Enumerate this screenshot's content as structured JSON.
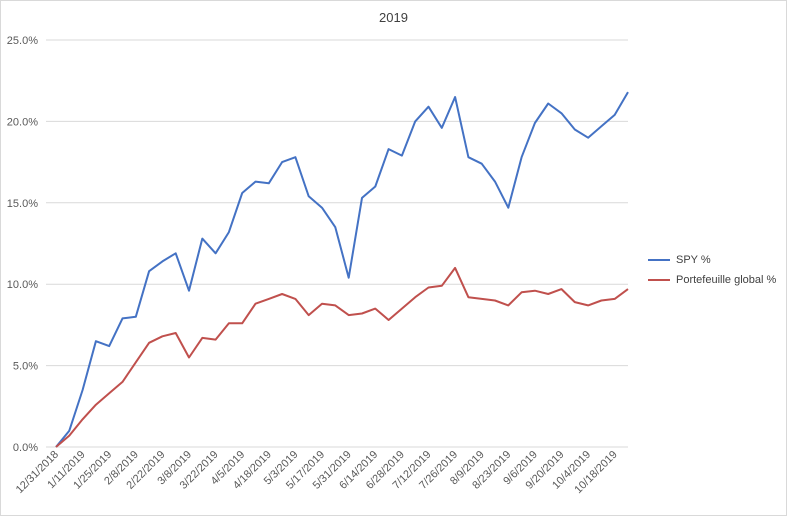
{
  "chart_data": {
    "type": "line",
    "title": "2019",
    "xlabel": "",
    "ylabel": "",
    "ylim": [
      0,
      25
    ],
    "y_ticks": [
      "0.0%",
      "5.0%",
      "10.0%",
      "15.0%",
      "20.0%",
      "25.0%"
    ],
    "grid": true,
    "legend_position": "right",
    "x": [
      "12/31/2018",
      "1/4/2019",
      "1/11/2019",
      "1/18/2019",
      "1/25/2019",
      "2/1/2019",
      "2/8/2019",
      "2/15/2019",
      "2/22/2019",
      "3/1/2019",
      "3/8/2019",
      "3/15/2019",
      "3/22/2019",
      "3/29/2019",
      "4/5/2019",
      "4/12/2019",
      "4/18/2019",
      "4/26/2019",
      "5/3/2019",
      "5/10/2019",
      "5/17/2019",
      "5/24/2019",
      "5/31/2019",
      "6/7/2019",
      "6/14/2019",
      "6/21/2019",
      "6/28/2019",
      "7/5/2019",
      "7/12/2019",
      "7/19/2019",
      "7/26/2019",
      "8/2/2019",
      "8/9/2019",
      "8/16/2019",
      "8/23/2019",
      "8/30/2019",
      "9/6/2019",
      "9/13/2019",
      "9/20/2019",
      "9/27/2019",
      "10/4/2019",
      "10/11/2019",
      "10/18/2019",
      "10/25/2019"
    ],
    "x_tick_labels": [
      "12/31/2018",
      "1/11/2019",
      "1/25/2019",
      "2/8/2019",
      "2/22/2019",
      "3/8/2019",
      "3/22/2019",
      "4/5/2019",
      "4/18/2019",
      "5/3/2019",
      "5/17/2019",
      "5/31/2019",
      "6/14/2019",
      "6/28/2019",
      "7/12/2019",
      "7/26/2019",
      "8/9/2019",
      "8/23/2019",
      "9/6/2019",
      "9/20/2019",
      "10/4/2019",
      "10/18/2019"
    ],
    "series": [
      {
        "name": "SPY %",
        "color": "#4472C4",
        "values": [
          0.0,
          1.0,
          3.5,
          6.5,
          6.2,
          7.9,
          8.0,
          10.8,
          11.4,
          11.9,
          9.6,
          12.8,
          11.9,
          13.2,
          15.6,
          16.3,
          16.2,
          17.5,
          17.8,
          15.4,
          14.7,
          13.5,
          10.4,
          15.3,
          16.0,
          18.3,
          17.9,
          20.0,
          20.9,
          19.6,
          21.5,
          17.8,
          17.4,
          16.3,
          14.7,
          17.8,
          19.9,
          21.1,
          20.5,
          19.5,
          19.0,
          19.7,
          20.4,
          21.8
        ]
      },
      {
        "name": "Portefeuille global %",
        "color": "#C0504D",
        "values": [
          0.0,
          0.7,
          1.7,
          2.6,
          3.3,
          4.0,
          5.2,
          6.4,
          6.8,
          7.0,
          5.5,
          6.7,
          6.6,
          7.6,
          7.6,
          8.8,
          9.1,
          9.4,
          9.1,
          8.1,
          8.8,
          8.7,
          8.1,
          8.2,
          8.5,
          7.8,
          8.5,
          9.2,
          9.8,
          9.9,
          11.0,
          9.2,
          9.1,
          9.0,
          8.7,
          9.5,
          9.6,
          9.4,
          9.7,
          8.9,
          8.7,
          9.0,
          9.1,
          9.7
        ]
      }
    ]
  }
}
